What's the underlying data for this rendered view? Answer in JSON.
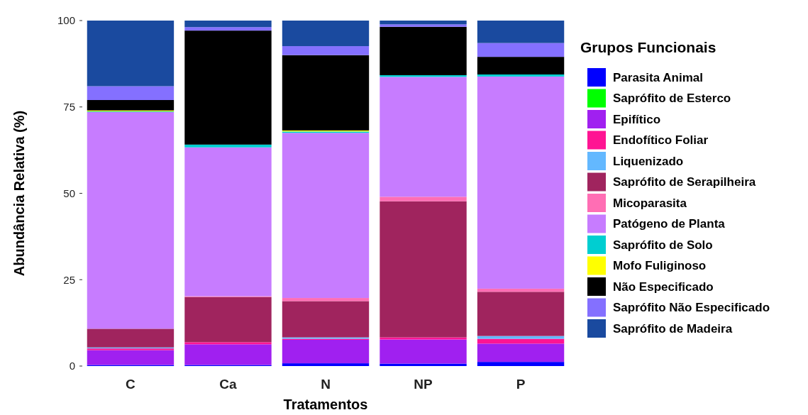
{
  "chart_data": {
    "type": "bar",
    "stacked": true,
    "xlabel": "Tratamentos",
    "ylabel": "Abundância Relativa (%)",
    "legend_title": "Grupos Funcionais",
    "legend": "right",
    "grid": false,
    "categories": [
      "C",
      "Ca",
      "N",
      "NP",
      "P"
    ],
    "ylim": [
      0,
      100
    ],
    "yticks": [
      0,
      25,
      50,
      75,
      100
    ],
    "series": [
      {
        "name": "Parasita Animal",
        "color": "#0000ff",
        "values": [
          0.3,
          0.3,
          0.8,
          0.7,
          1.2
        ]
      },
      {
        "name": "Saprófito de Esterco",
        "color": "#00ff00",
        "values": [
          0,
          0,
          0,
          0,
          0
        ]
      },
      {
        "name": "Epifítico",
        "color": "#a020f0",
        "values": [
          4.3,
          6.0,
          6.8,
          7.0,
          5.3
        ]
      },
      {
        "name": "Endofítico Foliar",
        "color": "#ff1493",
        "values": [
          0.5,
          0.6,
          0.3,
          0.6,
          1.4
        ]
      },
      {
        "name": "Liquenizado",
        "color": "#63b8ff",
        "values": [
          0.3,
          0,
          0.4,
          0,
          0.8
        ]
      },
      {
        "name": "Saprófito de Serapilheira",
        "color": "#a0245e",
        "values": [
          5.4,
          13.1,
          10.5,
          39.4,
          12.8
        ]
      },
      {
        "name": "Micoparasita",
        "color": "#ff6eb4",
        "values": [
          0,
          0.2,
          0.9,
          1.3,
          0.9
        ]
      },
      {
        "name": "Patógeno de Planta",
        "color": "#c77cff",
        "values": [
          62.7,
          43.1,
          47.8,
          34.7,
          61.4
        ]
      },
      {
        "name": "Saprófito de Solo",
        "color": "#00ced1",
        "values": [
          0.2,
          0.8,
          0.4,
          0.5,
          0.6
        ]
      },
      {
        "name": "Mofo Fuliginoso",
        "color": "#ffff00",
        "values": [
          0.3,
          0,
          0.3,
          0,
          0
        ]
      },
      {
        "name": "Não Especificado",
        "color": "#000000",
        "values": [
          3.0,
          33.0,
          21.8,
          14.0,
          5.1
        ]
      },
      {
        "name": "Saprófito Não Especificado",
        "color": "#8470ff",
        "values": [
          4.0,
          1.0,
          2.6,
          0.7,
          4.0
        ]
      },
      {
        "name": "Saprófito de Madeira",
        "color": "#1a4a9f",
        "values": [
          19.0,
          1.9,
          7.4,
          1.1,
          6.5
        ]
      }
    ]
  }
}
